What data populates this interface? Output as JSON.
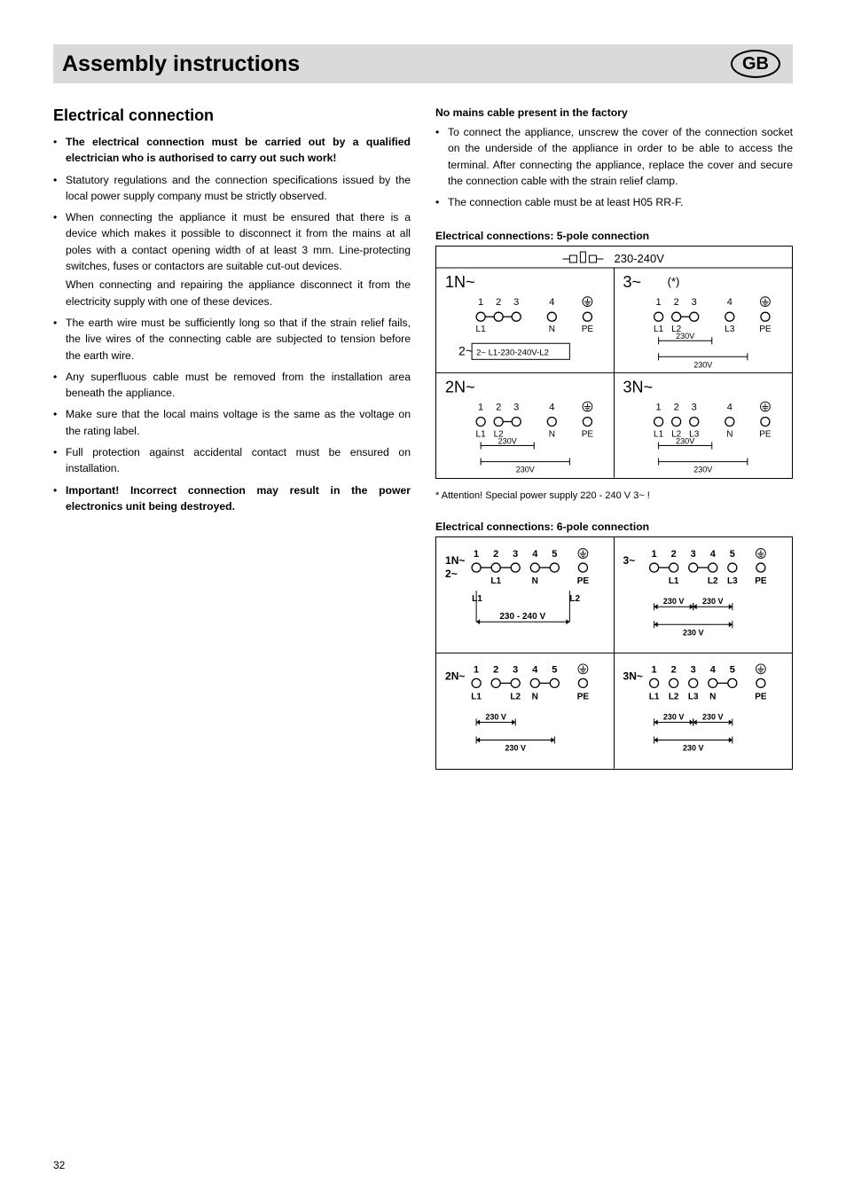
{
  "header": {
    "title": "Assembly instructions",
    "badge": "GB"
  },
  "left": {
    "section_title": "Electrical connection",
    "items": [
      {
        "text": "The electrical connection must be carried out by a qualified electrician who is authorised to carry out such work!",
        "bold": true
      },
      {
        "text": "Statutory regulations and the connection specifications issued by the local power supply company must be strictly observed."
      },
      {
        "text": "When connecting the appliance it must be ensured that there is a device which makes it possible to disconnect it from the mains at all poles with a contact opening width of at least 3 mm. Line-protecting switches, fuses or contactors are suitable cut-out devices.",
        "extra": "When connecting and repairing the appliance disconnect it from the electricity supply with one of these devices."
      },
      {
        "text": "The earth wire must be sufficiently long so that if the strain relief fails, the live wires of the connecting cable are subjected to tension before the earth wire."
      },
      {
        "text": "Any superfluous cable must be removed from the installation area beneath the appliance."
      },
      {
        "text": "Make sure that the local mains voltage is the same as the voltage on the rating label."
      },
      {
        "text": "Full protection against accidental contact must be ensured on installation."
      },
      {
        "text": "Important! Incorrect connection may result in the power electronics unit being destroyed.",
        "bold": true
      }
    ]
  },
  "right": {
    "subhead": "No mains cable present in the factory",
    "items": [
      {
        "text": "To connect the appliance, unscrew the cover of the connection socket on the underside of the appliance in order to be able to access the terminal. After connecting the appliance, replace the cover and secure the connection cable with the strain relief clamp."
      },
      {
        "text": "The connection cable must be at least H05 RR-F."
      }
    ],
    "diag5_caption": "Electrical connections: 5-pole connection",
    "diag6_caption": "Electrical connections: 6-pole connection",
    "footnote": "*  Attention! Special power supply 220 - 240 V 3~ !"
  },
  "diag5": {
    "voltage_header": "230-240V",
    "quads": [
      {
        "title": "1N~",
        "terminals": [
          "1",
          "2",
          "3",
          "4"
        ],
        "conn": [
          [
            1,
            2
          ],
          [
            2,
            3
          ]
        ],
        "labels": {
          "1": "L1",
          "4": "N",
          "5": "PE"
        },
        "sub": "2~ L1-230-240V-L2",
        "star": false
      },
      {
        "title": "3~",
        "star": true,
        "terminals": [
          "1",
          "2",
          "3",
          "4"
        ],
        "conn": [
          [
            2,
            3
          ]
        ],
        "labels": {
          "1": "L1",
          "2": "L2",
          "4": "L3",
          "5": "PE"
        },
        "v1": "230V",
        "v2": "230V",
        "v3": "230V"
      },
      {
        "title": "2N~",
        "terminals": [
          "1",
          "2",
          "3",
          "4"
        ],
        "conn": [
          [
            2,
            3
          ]
        ],
        "labels": {
          "1": "L1",
          "2": "L2",
          "4": "N",
          "5": "PE"
        },
        "v1": "230V",
        "v2": "230V"
      },
      {
        "title": "3N~",
        "terminals": [
          "1",
          "2",
          "3",
          "4"
        ],
        "conn": [],
        "labels": {
          "1": "L1",
          "2": "L2",
          "3": "L3",
          "4": "N",
          "5": "PE"
        },
        "v1": "230V",
        "v2": "230V",
        "v3": "230V"
      }
    ]
  },
  "diag6": {
    "quads": [
      {
        "title": "1N~",
        "title2": "2~",
        "terminals": [
          "1",
          "2",
          "3",
          "4",
          "5"
        ],
        "conn": [
          [
            1,
            2
          ],
          [
            2,
            3
          ],
          [
            4,
            5
          ]
        ],
        "labels": {
          "2": "L1",
          "4": "N",
          "6": "PE"
        },
        "bottom_l": "L1",
        "bottom_r": "L2",
        "bottom_v": "230 - 240 V"
      },
      {
        "title": "3~",
        "terminals": [
          "1",
          "2",
          "3",
          "4",
          "5"
        ],
        "conn": [
          [
            1,
            2
          ],
          [
            3,
            4
          ]
        ],
        "labels": {
          "2": "L1",
          "4": "L2",
          "5": "L3",
          "6": "PE"
        },
        "v_pairs": [
          "230 V",
          "230 V"
        ],
        "v_outer": "230 V"
      },
      {
        "title": "2N~",
        "terminals": [
          "1",
          "2",
          "3",
          "4",
          "5"
        ],
        "conn": [
          [
            2,
            3
          ],
          [
            4,
            5
          ]
        ],
        "labels": {
          "1": "L1",
          "3": "L2",
          "4": "N",
          "6": "PE"
        },
        "v_pairs": [
          "230 V"
        ],
        "v_outer": "230 V"
      },
      {
        "title": "3N~",
        "terminals": [
          "1",
          "2",
          "3",
          "4",
          "5"
        ],
        "conn": [
          [
            4,
            5
          ]
        ],
        "labels": {
          "1": "L1",
          "2": "L2",
          "3": "L3",
          "4": "N",
          "6": "PE"
        },
        "v_pairs": [
          "230 V",
          "230 V"
        ],
        "v_outer": "230 V"
      }
    ]
  },
  "page_number": "32",
  "colors": {
    "header_bg": "#d9dadb",
    "text": "#000000",
    "line": "#000000"
  }
}
